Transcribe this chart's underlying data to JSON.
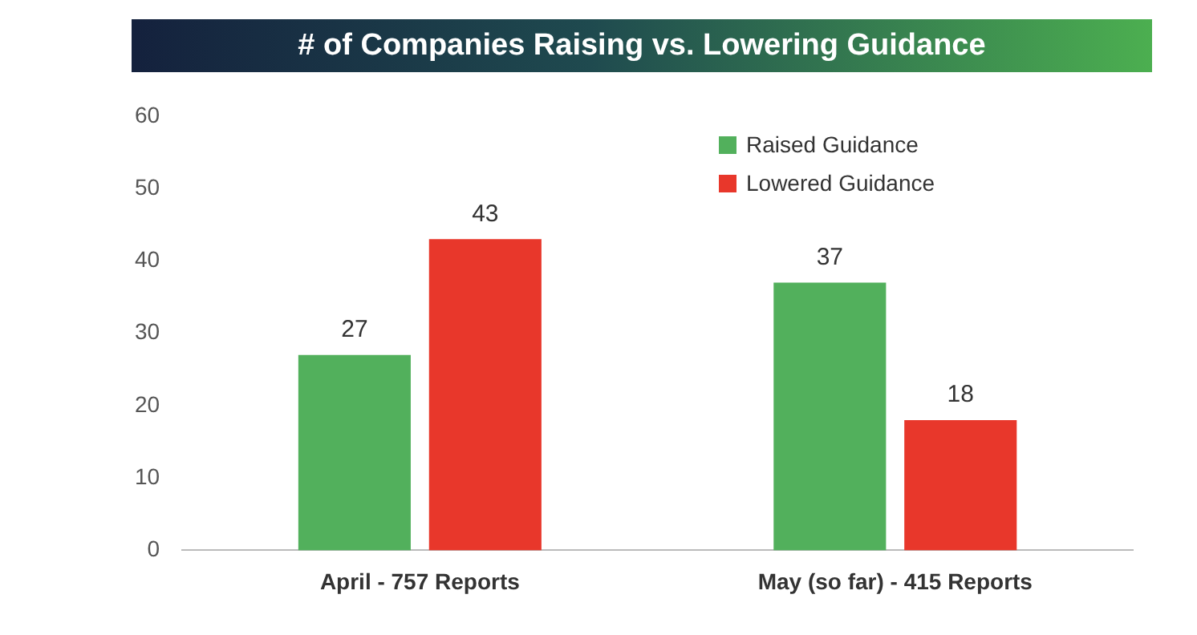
{
  "chart_data": {
    "type": "bar",
    "title": "# of Companies Raising vs. Lowering Guidance",
    "categories": [
      "April - 757 Reports",
      "May (so far) - 415 Reports"
    ],
    "series": [
      {
        "name": "Raised Guidance",
        "color": "#52b05c",
        "values": [
          27,
          37
        ]
      },
      {
        "name": "Lowered Guidance",
        "color": "#e8372b",
        "values": [
          43,
          18
        ]
      }
    ],
    "ylim": [
      0,
      60
    ],
    "yticks": [
      0,
      10,
      20,
      30,
      40,
      50,
      60
    ],
    "grid": false,
    "legend": "top right",
    "data_labels": true
  }
}
